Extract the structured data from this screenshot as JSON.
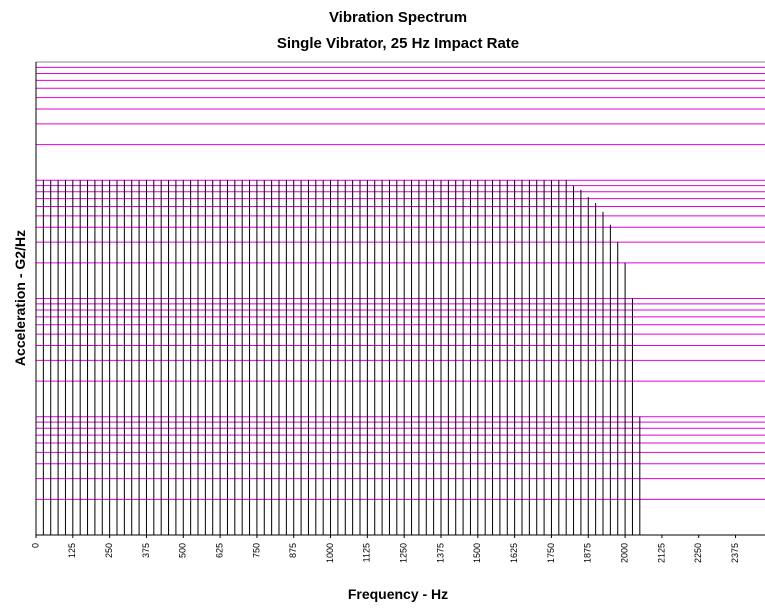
{
  "chart_data": {
    "type": "spectrum",
    "title": "Vibration Spectrum",
    "subtitle": "Single Vibrator, 25 Hz Impact Rate",
    "xlabel": "Frequency - Hz",
    "ylabel": "Acceleration - G2/Hz",
    "x": [
      0,
      25,
      50,
      75,
      100,
      125,
      150,
      175,
      200,
      225,
      250,
      275,
      300,
      325,
      350,
      375,
      400,
      425,
      450,
      475,
      500,
      525,
      550,
      575,
      600,
      625,
      650,
      675,
      700,
      725,
      750,
      775,
      800,
      825,
      850,
      875,
      900,
      925,
      950,
      975,
      1000,
      1025,
      1050,
      1075,
      1100,
      1125,
      1150,
      1175,
      1200,
      1225,
      1250,
      1275,
      1300,
      1325,
      1350,
      1375,
      1400,
      1425,
      1450,
      1475,
      1500,
      1525,
      1550,
      1575,
      1600,
      1625,
      1650,
      1675,
      1700,
      1725,
      1750,
      1775,
      1800,
      1825,
      1850,
      1875,
      1900,
      1925,
      1950,
      1975,
      2000,
      2025,
      2050
    ],
    "values": [
      0.01,
      0.01,
      0.01,
      0.01,
      0.01,
      0.01,
      0.01,
      0.01,
      0.01,
      0.01,
      0.01,
      0.01,
      0.01,
      0.01,
      0.01,
      0.01,
      0.01,
      0.01,
      0.01,
      0.01,
      0.01,
      0.01,
      0.01,
      0.01,
      0.01,
      0.01,
      0.01,
      0.01,
      0.01,
      0.01,
      0.01,
      0.01,
      0.01,
      0.01,
      0.01,
      0.01,
      0.01,
      0.01,
      0.01,
      0.01,
      0.01,
      0.01,
      0.01,
      0.01,
      0.01,
      0.01,
      0.01,
      0.01,
      0.01,
      0.01,
      0.01,
      0.01,
      0.01,
      0.01,
      0.01,
      0.01,
      0.01,
      0.01,
      0.01,
      0.01,
      0.01,
      0.01,
      0.01,
      0.01,
      0.01,
      0.01,
      0.01,
      0.01,
      0.01,
      0.01,
      0.01,
      0.01,
      0.01,
      0.009,
      0.0083,
      0.0072,
      0.0064,
      0.0054,
      0.0042,
      0.003,
      0.002,
      0.001,
      0.0001
    ],
    "color": "#000000",
    "xlim": [
      0,
      2475
    ],
    "xticks": [
      0,
      125,
      250,
      375,
      500,
      625,
      750,
      875,
      1000,
      1125,
      1250,
      1375,
      1500,
      1625,
      1750,
      1875,
      2000,
      2125,
      2250,
      2375
    ],
    "ylim": [
      1e-05,
      0.1
    ],
    "yticks": [
      1e-05,
      0.0001,
      0.001,
      0.01,
      0.1
    ],
    "ylog": true,
    "ytick_labels": false,
    "grid": true,
    "grid_color": "#e000e0"
  }
}
